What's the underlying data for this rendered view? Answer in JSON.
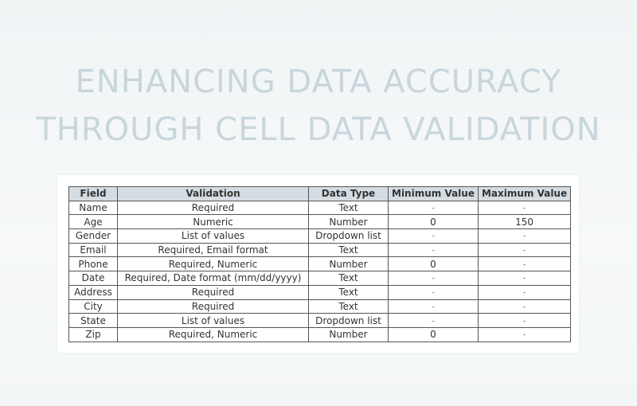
{
  "title": {
    "line1": "ENHANCING DATA ACCURACY",
    "line2": "THROUGH CELL DATA VALIDATION"
  },
  "table": {
    "headers": [
      "Field",
      "Validation",
      "Data Type",
      "Minimum Value",
      "Maximum Value"
    ],
    "rows": [
      [
        "Name",
        "Required",
        "Text",
        "-",
        "-"
      ],
      [
        "Age",
        "Numeric",
        "Number",
        "0",
        "150"
      ],
      [
        "Gender",
        "List of values",
        "Dropdown list",
        "-",
        "-"
      ],
      [
        "Email",
        "Required, Email format",
        "Text",
        "-",
        "-"
      ],
      [
        "Phone",
        "Required, Numeric",
        "Number",
        "0",
        "-"
      ],
      [
        "Date",
        "Required, Date format (mm/dd/yyyy)",
        "Text",
        "-",
        "-"
      ],
      [
        "Address",
        "Required",
        "Text",
        "-",
        "-"
      ],
      [
        "City",
        "Required",
        "Text",
        "-",
        "-"
      ],
      [
        "State",
        "List of values",
        "Dropdown list",
        "-",
        "-"
      ],
      [
        "Zip",
        "Required, Numeric",
        "Number",
        "0",
        "-"
      ]
    ]
  },
  "colors": {
    "header_bg": "#d5dde3",
    "title": "#c8d6dc"
  }
}
